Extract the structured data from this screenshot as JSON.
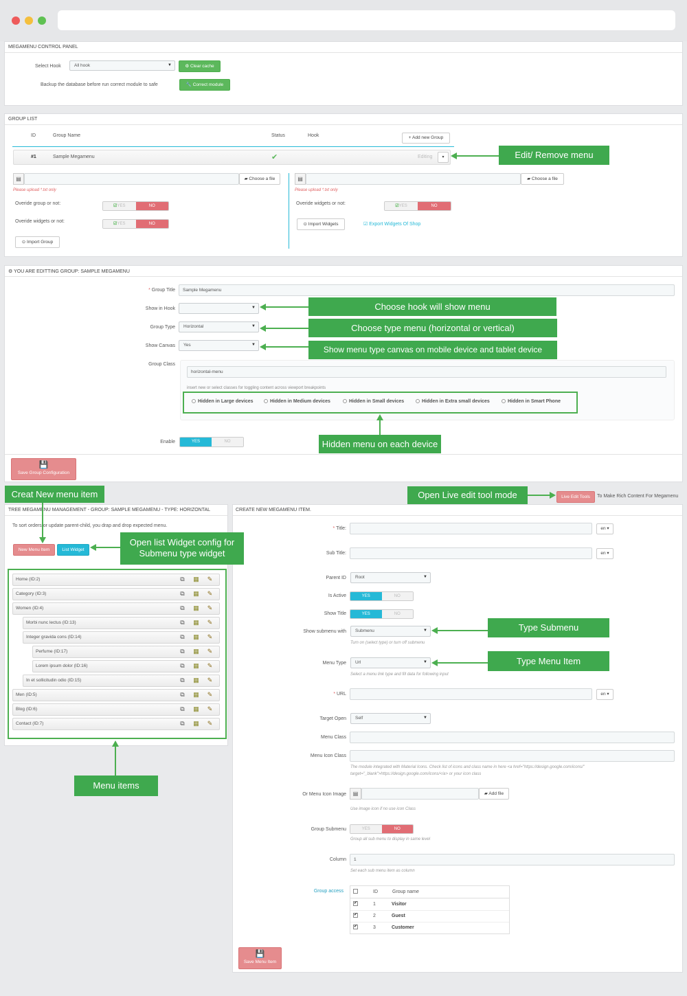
{
  "control_panel": {
    "title": "MEGAMENU CONTROL PANEL",
    "select_hook_label": "Select Hook",
    "select_hook_value": "All hook",
    "clear_cache": "Clear cache",
    "backup_label": "Backup the database before run correct module to safe",
    "correct_module": "Correct module"
  },
  "group_list": {
    "title": "GROUP LIST",
    "col_id": "ID",
    "col_name": "Group Name",
    "col_status": "Status",
    "col_hook": "Hook",
    "add_group": "Add new Group",
    "row_id": "#1",
    "row_name": "Sample Megamenu",
    "row_action": "Editing",
    "choose_file": "Choose a file",
    "upload_hint": "Please upload *.txt only",
    "override_group": "Overide group or not:",
    "override_widgets": "Overide widgets or not:",
    "yes": "YES",
    "no": "NO",
    "import_group": "Import Group",
    "import_widgets": "Import Widgets",
    "export_widgets": "Export Widgets Of Shop"
  },
  "edit_group": {
    "title": "YOU ARE EDITTING GROUP: SAMPLE MEGAMENU",
    "group_title_label": "Group Title",
    "group_title_value": "Sample Megamenu",
    "show_in_hook_label": "Show in Hook",
    "group_type_label": "Group Type",
    "group_type_value": "Horizontal",
    "show_canvas_label": "Show Canvas",
    "show_canvas_value": "Yes",
    "group_class_label": "Group Class",
    "group_class_value": "horizontal-menu",
    "class_hint": "insert new or select classes for toggling content across viewport breakpoints",
    "hidden_options": [
      "Hidden in Large devices",
      "Hidden in Medium devices",
      "Hidden in Small devices",
      "Hidden in Extra small devices",
      "Hidden in Smart Phone"
    ],
    "enable_label": "Enable",
    "yes": "YES",
    "no": "NO",
    "save": "Save Group Configuration"
  },
  "tree": {
    "title": "TREE MEGAMENU MANAGEMENT - GROUP: SAMPLE MEGAMENU - TYPE: HORIZONTAL",
    "hint": "To sort orders or update parent-child, you drap and drop expected menu.",
    "new_item": "New Menu Item",
    "list_widget": "List Widget",
    "items": [
      "Home (ID:2)",
      "Category (ID:3)",
      "Women (ID:4)",
      "Morbi nunc lectus (ID:13)",
      "Integer gravida cons (ID:14)",
      "Perfume (ID:17)",
      "Lorem ipsum dolor (ID:16)",
      "In et sollicitudin odio (ID:15)",
      "Men (ID:5)",
      "Blog (ID:6)",
      "Contact (ID:7)"
    ]
  },
  "live_edit": {
    "button": "Live Edit Tools",
    "text": "To Make Rich Content For Megamenu"
  },
  "create_item": {
    "title": "CREATE NEW MEGAMENU ITEM.",
    "title_label": "Title:",
    "subtitle_label": "Sub Title:",
    "lang": "en",
    "parent_label": "Parent ID",
    "parent_value": "Root",
    "is_active_label": "Is Active",
    "show_title_label": "Show Title",
    "yes": "YES",
    "no": "NO",
    "show_submenu_label": "Show submenu with",
    "show_submenu_value": "Submenu",
    "show_submenu_help": "Turn on (select type) or turn off submenu",
    "menu_type_label": "Menu Type",
    "menu_type_value": "Url",
    "menu_type_help": "Select a menu link type and fill data for following input",
    "url_label": "URL",
    "target_label": "Target Open",
    "target_value": "Self",
    "menu_class_label": "Menu Class",
    "icon_class_label": "Menu Icon Class",
    "icon_help_1": "The module integrated with Material Icons. Check list of icons and class name in here <a href=\"https://design.google.com/icons/\"",
    "icon_help_2": "target=\"_blank\">https://design.google.com/icons/</a> or your icon class",
    "icon_image_label": "Or Menu Icon Image",
    "add_file": "Add file",
    "icon_image_help": "Use image icon if no use icon Class",
    "group_submenu_label": "Group Submenu",
    "group_submenu_help": "Group all sub menu to display in same level",
    "column_label": "Column",
    "column_value": "1",
    "column_help": "Set each sub menu item as column",
    "group_access_label": "Group access",
    "ga_col_id": "ID",
    "ga_col_name": "Group name",
    "ga_rows": [
      {
        "id": "1",
        "name": "Visitor"
      },
      {
        "id": "2",
        "name": "Guest"
      },
      {
        "id": "3",
        "name": "Customer"
      }
    ],
    "save": "Save Menu Item"
  },
  "annotations": {
    "edit_remove": "Edit/ Remove menu",
    "choose_hook": "Choose hook will show menu",
    "choose_type": "Choose type menu (horizontal or vertical)",
    "show_canvas": "Show menu type canvas on mobile device and tablet device",
    "hidden_menu": "Hidden menu on each device",
    "creat_new": "Creat New menu item",
    "live_edit": "Open Live edit tool mode",
    "list_widget": "Open list Widget config for\nSubmenu type widget",
    "type_submenu": "Type Submenu",
    "type_menu_item": "Type Menu Item",
    "menu_items": "Menu items"
  }
}
